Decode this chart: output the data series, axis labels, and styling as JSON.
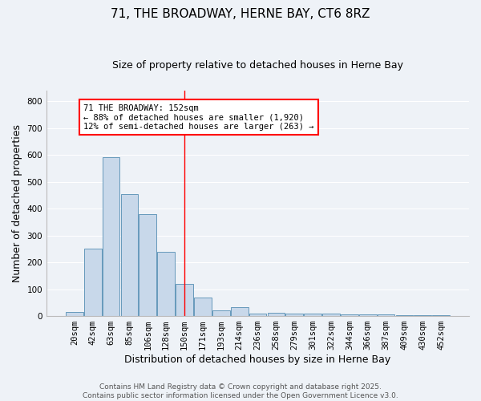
{
  "title1": "71, THE BROADWAY, HERNE BAY, CT6 8RZ",
  "title2": "Size of property relative to detached houses in Herne Bay",
  "xlabel": "Distribution of detached houses by size in Herne Bay",
  "ylabel": "Number of detached properties",
  "categories": [
    "20sqm",
    "42sqm",
    "63sqm",
    "85sqm",
    "106sqm",
    "128sqm",
    "150sqm",
    "171sqm",
    "193sqm",
    "214sqm",
    "236sqm",
    "258sqm",
    "279sqm",
    "301sqm",
    "322sqm",
    "344sqm",
    "366sqm",
    "387sqm",
    "409sqm",
    "430sqm",
    "452sqm"
  ],
  "values": [
    15,
    250,
    590,
    455,
    380,
    238,
    120,
    70,
    20,
    32,
    10,
    12,
    10,
    8,
    10,
    5,
    5,
    5,
    2,
    2,
    2
  ],
  "bar_color": "#c8d8ea",
  "bar_edge_color": "#6699bb",
  "red_line_index": 6,
  "annotation_text": "71 THE BROADWAY: 152sqm\n← 88% of detached houses are smaller (1,920)\n12% of semi-detached houses are larger (263) →",
  "annotation_box_color": "white",
  "annotation_box_edge_color": "red",
  "ylim": [
    0,
    840
  ],
  "yticks": [
    0,
    100,
    200,
    300,
    400,
    500,
    600,
    700,
    800
  ],
  "background_color": "#eef2f7",
  "grid_color": "white",
  "footer_line1": "Contains HM Land Registry data © Crown copyright and database right 2025.",
  "footer_line2": "Contains public sector information licensed under the Open Government Licence v3.0.",
  "title1_fontsize": 11,
  "title2_fontsize": 9,
  "xlabel_fontsize": 9,
  "ylabel_fontsize": 9,
  "tick_fontsize": 7.5,
  "annotation_fontsize": 7.5,
  "footer_fontsize": 6.5
}
